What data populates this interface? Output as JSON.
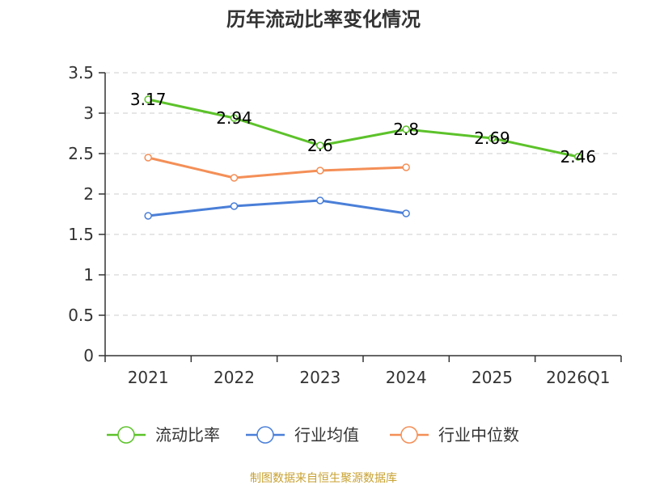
{
  "chart_data": {
    "type": "line",
    "title": "历年流动比率变化情况",
    "categories": [
      "2021",
      "2022",
      "2023",
      "2024",
      "2025",
      "2026Q1"
    ],
    "ylim": [
      0,
      3.5
    ],
    "yticks": [
      "0",
      "0.5",
      "1",
      "1.5",
      "2",
      "2.5",
      "3",
      "3.5"
    ],
    "grid": true,
    "legend_position": "bottom",
    "series": [
      {
        "name": "流动比率",
        "color": "#5cc22a",
        "values": [
          3.17,
          2.94,
          2.6,
          2.8,
          2.69,
          2.46
        ],
        "labels": [
          "3.17",
          "2.94",
          "2.6",
          "2.8",
          "2.69",
          "2.46"
        ]
      },
      {
        "name": "行业均值",
        "color": "#4a7fd8",
        "values": [
          1.73,
          1.85,
          1.92,
          1.76,
          null,
          null
        ]
      },
      {
        "name": "行业中位数",
        "color": "#f48f57",
        "values": [
          2.45,
          2.2,
          2.29,
          2.33,
          null,
          null
        ]
      }
    ]
  },
  "source": "制图数据来自恒生聚源数据库"
}
